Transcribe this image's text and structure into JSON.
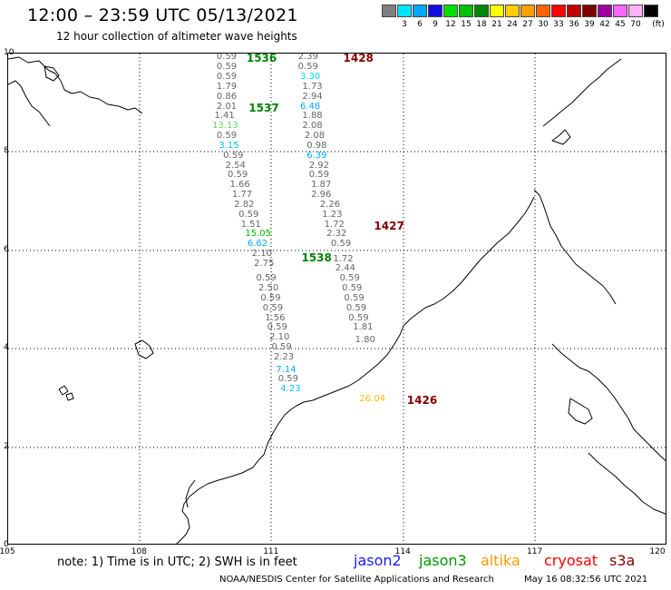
{
  "header": {
    "title": "12:00 – 23:59 UTC 05/13/2021",
    "subtitle": "12 hour collection of altimeter wave heights"
  },
  "legend": {
    "unit": "(ft)",
    "swatches": [
      {
        "color": "#808080",
        "label": ""
      },
      {
        "color": "#00e5ff",
        "label": "3"
      },
      {
        "color": "#00a8ff",
        "label": "6"
      },
      {
        "color": "#1010e0",
        "label": "9"
      },
      {
        "color": "#00e000",
        "label": "12"
      },
      {
        "color": "#00c000",
        "label": "15"
      },
      {
        "color": "#008800",
        "label": "18"
      },
      {
        "color": "#ffff00",
        "label": "21"
      },
      {
        "color": "#ffcc00",
        "label": "24"
      },
      {
        "color": "#ffa000",
        "label": "27"
      },
      {
        "color": "#ff6600",
        "label": "30"
      },
      {
        "color": "#ff0000",
        "label": "33"
      },
      {
        "color": "#c00000",
        "label": "36"
      },
      {
        "color": "#800000",
        "label": "39"
      },
      {
        "color": "#a000a0",
        "label": "42"
      },
      {
        "color": "#ff66ff",
        "label": "45"
      },
      {
        "color": "#ffb0ff",
        "label": "70"
      },
      {
        "color": "#000000",
        "label": ""
      }
    ]
  },
  "map": {
    "lon_min": 105,
    "lon_max": 120,
    "lat_min": 0,
    "lat_max": 10,
    "y_labels": [
      "0",
      "2",
      "4",
      "6",
      "8",
      "10"
    ],
    "x_labels": [
      "105",
      "108",
      "111",
      "114",
      "117",
      "120"
    ],
    "passes": [
      {
        "label": "1536",
        "lon": 110.3,
        "lat": 9.9,
        "color": "#008000"
      },
      {
        "label": "1537",
        "lon": 110.35,
        "lat": 8.9,
        "color": "#008000"
      },
      {
        "label": "1538",
        "lon": 111.55,
        "lat": 5.85,
        "color": "#008000"
      },
      {
        "label": "1428",
        "lon": 112.5,
        "lat": 9.9,
        "color": "#800000"
      },
      {
        "label": "1427",
        "lon": 113.2,
        "lat": 6.5,
        "color": "#800000"
      },
      {
        "label": "1426",
        "lon": 113.95,
        "lat": 2.95,
        "color": "#800000"
      }
    ],
    "track_a": [
      {
        "v": "0.59",
        "lon": 109.95,
        "lat": 9.92
      },
      {
        "v": "0.59",
        "lon": 109.95,
        "lat": 9.72
      },
      {
        "v": "0.59",
        "lon": 109.95,
        "lat": 9.52
      },
      {
        "v": "1.79",
        "lon": 109.95,
        "lat": 9.32
      },
      {
        "v": "0.86",
        "lon": 109.95,
        "lat": 9.12
      },
      {
        "v": "2.01",
        "lon": 109.95,
        "lat": 8.92
      },
      {
        "v": "1.41",
        "lon": 109.9,
        "lat": 8.72
      },
      {
        "v": "13.13",
        "lon": 109.85,
        "lat": 8.52,
        "c": "#66dd66"
      },
      {
        "v": "0.59",
        "lon": 109.95,
        "lat": 8.32
      },
      {
        "v": "3.15",
        "lon": 110.0,
        "lat": 8.12,
        "c": "#00bfff"
      },
      {
        "v": "0.59",
        "lon": 110.1,
        "lat": 7.92
      },
      {
        "v": "2.54",
        "lon": 110.15,
        "lat": 7.72
      },
      {
        "v": "0.59",
        "lon": 110.2,
        "lat": 7.52
      },
      {
        "v": "1.66",
        "lon": 110.25,
        "lat": 7.32
      },
      {
        "v": "1.77",
        "lon": 110.3,
        "lat": 7.12
      },
      {
        "v": "2.82",
        "lon": 110.35,
        "lat": 6.92
      },
      {
        "v": "0.59",
        "lon": 110.45,
        "lat": 6.72
      },
      {
        "v": "1.51",
        "lon": 110.5,
        "lat": 6.52
      },
      {
        "v": "15.05",
        "lon": 110.6,
        "lat": 6.32,
        "c": "#00bb00"
      },
      {
        "v": "6.62",
        "lon": 110.65,
        "lat": 6.12,
        "c": "#00a8ff"
      },
      {
        "v": "2.10",
        "lon": 110.75,
        "lat": 5.92
      },
      {
        "v": "2.75",
        "lon": 110.8,
        "lat": 5.72
      },
      {
        "v": "0.59",
        "lon": 110.85,
        "lat": 5.42
      },
      {
        "v": "2.50",
        "lon": 110.9,
        "lat": 5.22
      },
      {
        "v": "0.59",
        "lon": 110.95,
        "lat": 5.02
      },
      {
        "v": "0.59",
        "lon": 111.0,
        "lat": 4.82
      },
      {
        "v": "1.56",
        "lon": 111.05,
        "lat": 4.62
      },
      {
        "v": "0.59",
        "lon": 111.1,
        "lat": 4.42
      },
      {
        "v": "2.10",
        "lon": 111.15,
        "lat": 4.22
      },
      {
        "v": "0.59",
        "lon": 111.2,
        "lat": 4.02
      },
      {
        "v": "2.23",
        "lon": 111.25,
        "lat": 3.82
      },
      {
        "v": "7.14",
        "lon": 111.3,
        "lat": 3.57,
        "c": "#00a8ff"
      },
      {
        "v": "0.59",
        "lon": 111.35,
        "lat": 3.37
      },
      {
        "v": "4.23",
        "lon": 111.4,
        "lat": 3.17,
        "c": "#00bfff"
      }
    ],
    "track_b": [
      {
        "v": "2.39",
        "lon": 111.8,
        "lat": 9.92
      },
      {
        "v": "0.59",
        "lon": 111.8,
        "lat": 9.72
      },
      {
        "v": "3.30",
        "lon": 111.85,
        "lat": 9.52,
        "c": "#00d8ff"
      },
      {
        "v": "1.73",
        "lon": 111.9,
        "lat": 9.32
      },
      {
        "v": "2.94",
        "lon": 111.9,
        "lat": 9.12
      },
      {
        "v": "6.48",
        "lon": 111.85,
        "lat": 8.92,
        "c": "#00a8ff"
      },
      {
        "v": "1.88",
        "lon": 111.9,
        "lat": 8.72
      },
      {
        "v": "2.08",
        "lon": 111.9,
        "lat": 8.52
      },
      {
        "v": "2.08",
        "lon": 111.95,
        "lat": 8.32
      },
      {
        "v": "0.98",
        "lon": 112.0,
        "lat": 8.12
      },
      {
        "v": "6.39",
        "lon": 112.0,
        "lat": 7.92,
        "c": "#00a8ff"
      },
      {
        "v": "2.92",
        "lon": 112.05,
        "lat": 7.72
      },
      {
        "v": "0.59",
        "lon": 112.05,
        "lat": 7.52
      },
      {
        "v": "1.87",
        "lon": 112.1,
        "lat": 7.32
      },
      {
        "v": "2.96",
        "lon": 112.1,
        "lat": 7.12
      },
      {
        "v": "2.26",
        "lon": 112.3,
        "lat": 6.92
      },
      {
        "v": "1.23",
        "lon": 112.35,
        "lat": 6.72
      },
      {
        "v": "1.72",
        "lon": 112.4,
        "lat": 6.52
      },
      {
        "v": "2.32",
        "lon": 112.45,
        "lat": 6.32
      },
      {
        "v": "0.59",
        "lon": 112.55,
        "lat": 6.12
      },
      {
        "v": "1.72",
        "lon": 112.6,
        "lat": 5.82
      },
      {
        "v": "2.44",
        "lon": 112.65,
        "lat": 5.62
      },
      {
        "v": "0.59",
        "lon": 112.75,
        "lat": 5.42
      },
      {
        "v": "0.59",
        "lon": 112.8,
        "lat": 5.22
      },
      {
        "v": "0.59",
        "lon": 112.85,
        "lat": 5.02
      },
      {
        "v": "0.59",
        "lon": 112.9,
        "lat": 4.82
      },
      {
        "v": "0.59",
        "lon": 112.95,
        "lat": 4.62
      },
      {
        "v": "1.81",
        "lon": 113.05,
        "lat": 4.42
      },
      {
        "v": "1.80",
        "lon": 113.1,
        "lat": 4.17
      },
      {
        "v": "26.04",
        "lon": 113.2,
        "lat": 2.97,
        "c": "#ffbb00"
      }
    ]
  },
  "footer": {
    "note": "note:  1) Time is in UTC;  2) SWH is in feet",
    "satellites": [
      {
        "name": "jason2",
        "color": "#1a1aff"
      },
      {
        "name": "jason3",
        "color": "#009900"
      },
      {
        "name": "altika",
        "color": "#ff9900"
      },
      {
        "name": "cryosat",
        "color": "#ff0000"
      },
      {
        "name": "s3a",
        "color": "#800000"
      }
    ],
    "credit": "NOAA/NESDIS Center for Satellite Applications and Research",
    "timestamp": "May 16 08:32:56 UTC 2021"
  }
}
